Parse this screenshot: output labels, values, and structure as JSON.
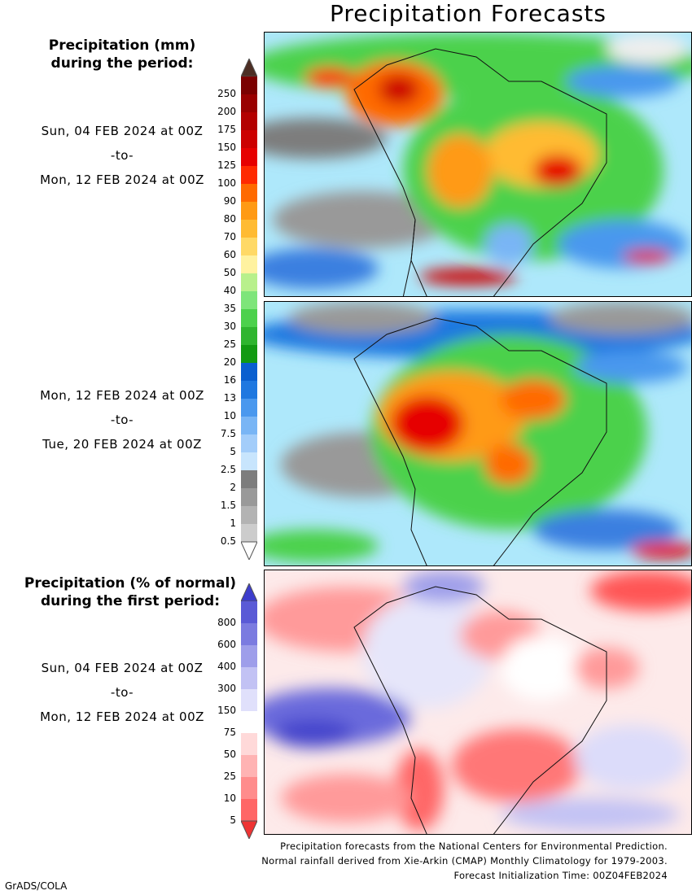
{
  "title": "Precipitation Forecasts",
  "mm_legend": {
    "heading_line1": "Precipitation (mm)",
    "heading_line2": "during the period:",
    "ticks": [
      "250",
      "200",
      "175",
      "150",
      "125",
      "100",
      "90",
      "80",
      "70",
      "60",
      "50",
      "40",
      "35",
      "30",
      "25",
      "20",
      "16",
      "13",
      "10",
      "7.5",
      "5",
      "2.5",
      "2",
      "1.5",
      "1",
      "0.5"
    ],
    "colors": [
      "#7b0000",
      "#990000",
      "#b30000",
      "#cc0000",
      "#e60000",
      "#ff2a00",
      "#ff6a00",
      "#ff9a14",
      "#ffbb33",
      "#ffd966",
      "#fff2a0",
      "#b8f08c",
      "#7ee57a",
      "#4cd14c",
      "#2fb52f",
      "#129a12",
      "#0a5fcf",
      "#1f78e0",
      "#4a98ee",
      "#79b5f5",
      "#a3cdfa",
      "#c8e5fd",
      "#7d7d7d",
      "#999999",
      "#b3b3b3",
      "#cccccc"
    ],
    "arrow_top_color": "#4d2e24",
    "arrow_bottom_color": "#ffffff"
  },
  "periods": [
    {
      "from": "Sun, 04 FEB 2024 at 00Z",
      "sep": "-to-",
      "to": "Mon, 12 FEB 2024 at 00Z"
    },
    {
      "from": "Mon, 12 FEB 2024 at 00Z",
      "sep": "-to-",
      "to": "Tue, 20 FEB 2024 at 00Z"
    }
  ],
  "pct_legend": {
    "heading_line1": "Precipitation (% of normal)",
    "heading_line2": "during the first period:",
    "ticks": [
      "800",
      "600",
      "400",
      "300",
      "150",
      "75",
      "50",
      "25",
      "10",
      "5"
    ],
    "colors": [
      "#5a5ad6",
      "#7b7be0",
      "#9e9eea",
      "#c2c2f4",
      "#e0e0fb",
      "#ffffff",
      "#ffd9d9",
      "#ffb3b3",
      "#ff8c8c",
      "#ff6666"
    ],
    "arrow_top_color": "#3d3dcc",
    "arrow_bottom_color": "#ee3333",
    "period": {
      "from": "Sun, 04 FEB 2024 at 00Z",
      "sep": "-to-",
      "to": "Mon, 12 FEB 2024 at 00Z"
    }
  },
  "footer": {
    "line1": "Precipitation forecasts from the National Centers for Environmental Prediction.",
    "line2": "Normal rainfall derived from Xie-Arkin (CMAP) Monthly Climatology for 1979-2003.",
    "line3": "Forecast Initialization Time: 00Z04FEB2024"
  },
  "credit": "GrADS/COLA"
}
